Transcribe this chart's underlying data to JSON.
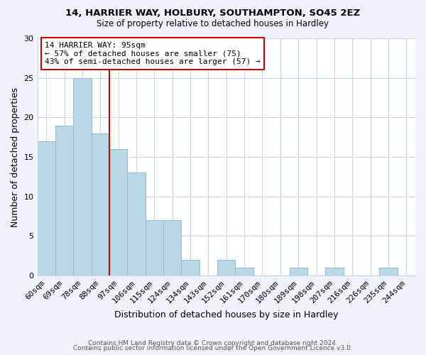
{
  "title1": "14, HARRIER WAY, HOLBURY, SOUTHAMPTON, SO45 2EZ",
  "title2": "Size of property relative to detached houses in Hardley",
  "xlabel": "Distribution of detached houses by size in Hardley",
  "ylabel": "Number of detached properties",
  "categories": [
    "60sqm",
    "69sqm",
    "78sqm",
    "88sqm",
    "97sqm",
    "106sqm",
    "115sqm",
    "124sqm",
    "134sqm",
    "143sqm",
    "152sqm",
    "161sqm",
    "170sqm",
    "180sqm",
    "189sqm",
    "198sqm",
    "207sqm",
    "216sqm",
    "226sqm",
    "235sqm",
    "244sqm"
  ],
  "values": [
    17,
    19,
    25,
    18,
    16,
    13,
    7,
    7,
    2,
    0,
    2,
    1,
    0,
    0,
    1,
    0,
    1,
    0,
    0,
    1,
    0
  ],
  "bar_color": "#b8d8e8",
  "bar_edge_color": "#90bcd0",
  "highlight_line_color": "#cc0000",
  "annotation_text": "14 HARRIER WAY: 95sqm\n← 57% of detached houses are smaller (75)\n43% of semi-detached houses are larger (57) →",
  "annotation_box_color": "#ffffff",
  "annotation_box_edge_color": "#cc0000",
  "ylim": [
    0,
    30
  ],
  "yticks": [
    0,
    5,
    10,
    15,
    20,
    25,
    30
  ],
  "footer1": "Contains HM Land Registry data © Crown copyright and database right 2024.",
  "footer2": "Contains public sector information licensed under the Open Government Licence v3.0.",
  "bg_color": "#eef2fa",
  "plot_bg_color": "#ffffff",
  "grid_color": "#c8d4ee"
}
